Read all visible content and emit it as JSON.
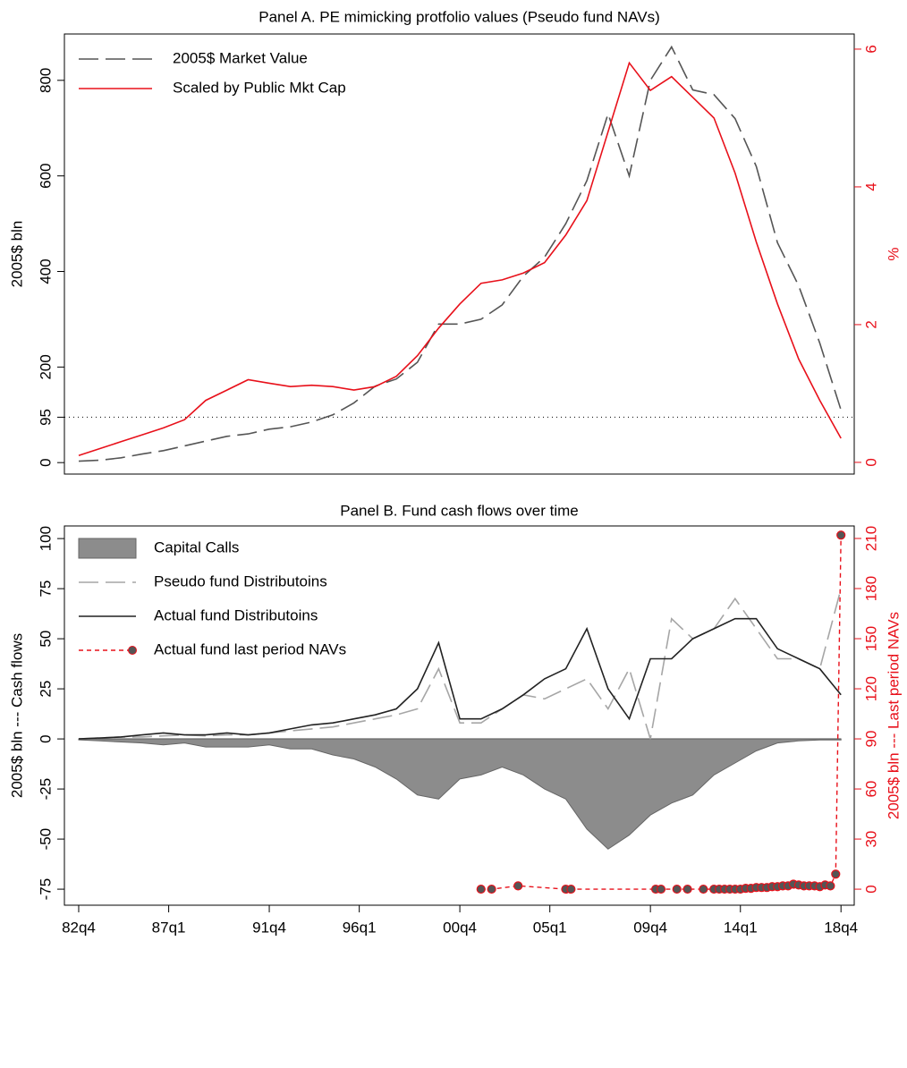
{
  "chart_data": [
    {
      "type": "line",
      "title": "Panel A.  PE mimicking protfolio values (Pseudo fund NAVs)",
      "ylabel": "2005$ bln",
      "y2label": "%",
      "x": [
        0,
        4,
        8,
        12,
        16,
        20,
        24,
        28,
        32,
        36,
        40,
        44,
        48,
        52,
        56,
        60,
        64,
        68,
        72,
        76,
        80,
        84,
        88,
        92,
        96,
        100,
        104,
        108,
        112,
        116,
        120,
        124,
        128,
        132,
        136,
        140,
        144
      ],
      "xlim": [
        -2.7,
        146.5
      ],
      "ylim": [
        -24,
        897
      ],
      "yticks": [
        0,
        95,
        200,
        400,
        600,
        800
      ],
      "y2lim": [
        -0.17,
        6.22
      ],
      "y2ticks": [
        0,
        2,
        4,
        6
      ],
      "hline": 95,
      "legend": "upper left",
      "series": [
        {
          "name": "2005$ Market Value",
          "color": "#555555",
          "linestyle": "dashed",
          "values": [
            3,
            5,
            10,
            18,
            25,
            35,
            45,
            55,
            60,
            70,
            75,
            85,
            100,
            125,
            160,
            175,
            210,
            290,
            290,
            300,
            330,
            390,
            430,
            500,
            590,
            730,
            600,
            800,
            870,
            780,
            770,
            720,
            620,
            460,
            370,
            250,
            110
          ]
        },
        {
          "name": "Scaled by Public Mkt Cap",
          "color": "#e8101a",
          "axis": "y2",
          "values": [
            0.1,
            0.2,
            0.3,
            0.4,
            0.5,
            0.62,
            0.9,
            1.05,
            1.2,
            1.15,
            1.1,
            1.12,
            1.1,
            1.05,
            1.1,
            1.25,
            1.55,
            1.95,
            2.3,
            2.6,
            2.65,
            2.75,
            2.9,
            3.3,
            3.8,
            4.8,
            5.8,
            5.4,
            5.6,
            5.3,
            5.0,
            4.2,
            3.2,
            2.3,
            1.5,
            0.9,
            0.35
          ]
        }
      ]
    },
    {
      "type": "combo",
      "title": "Panel B.  Fund cash flows over time",
      "ylabel": "2005$ bln   ---   Cash flows",
      "y2label": "2005$ bln  ---  Last period NAVs",
      "x": [
        0,
        4,
        8,
        12,
        16,
        20,
        24,
        28,
        32,
        36,
        40,
        44,
        48,
        52,
        56,
        60,
        64,
        68,
        72,
        76,
        80,
        84,
        88,
        92,
        96,
        100,
        104,
        108,
        112,
        116,
        120,
        124,
        128,
        132,
        136,
        140,
        144
      ],
      "xlim": [
        -2.7,
        146.5
      ],
      "xticks": [
        {
          "value": 0,
          "label": "82q4"
        },
        {
          "value": 17,
          "label": "87q1"
        },
        {
          "value": 36,
          "label": "91q4"
        },
        {
          "value": 53,
          "label": "96q1"
        },
        {
          "value": 72,
          "label": "00q4"
        },
        {
          "value": 89,
          "label": "05q1"
        },
        {
          "value": 108,
          "label": "09q4"
        },
        {
          "value": 125,
          "label": "14q1"
        },
        {
          "value": 144,
          "label": "18q4"
        }
      ],
      "ylim": [
        -83,
        106.3
      ],
      "yticks": [
        -75,
        -50,
        -25,
        0,
        25,
        50,
        75,
        100
      ],
      "y2lim": [
        -9.6,
        217.5
      ],
      "y2ticks": [
        0,
        30,
        60,
        90,
        120,
        150,
        180,
        210
      ],
      "legend": "upper left",
      "series": [
        {
          "name": "Capital Calls",
          "type": "area",
          "color": "#8c8c8c",
          "values": [
            -0.5,
            -1,
            -1.5,
            -2,
            -3,
            -2,
            -4,
            -4,
            -4,
            -3,
            -5,
            -5,
            -8,
            -10,
            -14,
            -20,
            -28,
            -30,
            -20,
            -18,
            -14,
            -18,
            -25,
            -30,
            -45,
            -55,
            -48,
            -38,
            -32,
            -28,
            -18,
            -12,
            -6,
            -2,
            -1,
            -0.5,
            -0.5
          ]
        },
        {
          "name": "Pseudo fund Distributoins",
          "type": "line",
          "color": "#a6a6a6",
          "linestyle": "dashed",
          "values": [
            0,
            0.5,
            1,
            1,
            1.5,
            2,
            1.5,
            2,
            2,
            3,
            4,
            5,
            6,
            8,
            10,
            12,
            15,
            35,
            8,
            8,
            15,
            22,
            20,
            25,
            30,
            15,
            35,
            0,
            60,
            50,
            55,
            70,
            55,
            40,
            40,
            35,
            75
          ]
        },
        {
          "name": "Actual fund Distributoins",
          "type": "line",
          "color": "#222222",
          "values": [
            0,
            0.5,
            1,
            2,
            3,
            2,
            2,
            3,
            2,
            3,
            5,
            7,
            8,
            10,
            12,
            15,
            25,
            48,
            10,
            10,
            15,
            22,
            30,
            35,
            55,
            25,
            10,
            40,
            40,
            50,
            55,
            60,
            60,
            45,
            40,
            35,
            22
          ]
        },
        {
          "name": "Actual fund last period NAVs",
          "type": "scatter",
          "color": "#e8101a",
          "linestyle": "dashed",
          "axis": "y2",
          "x": [
            76,
            78,
            83,
            92,
            93,
            109,
            110,
            113,
            115,
            118,
            120,
            121,
            122,
            123,
            124,
            125,
            126,
            127,
            128,
            129,
            130,
            131,
            132,
            133,
            134,
            135,
            136,
            137,
            138,
            139,
            140,
            141,
            142,
            143,
            144
          ],
          "values": [
            0,
            0,
            2,
            0,
            0,
            0,
            0,
            0,
            0,
            0,
            0,
            0,
            0,
            0,
            0,
            0,
            0.5,
            0.5,
            1,
            1,
            1,
            1.5,
            1.5,
            2,
            2,
            3,
            2.5,
            2,
            2,
            2,
            1.5,
            2.5,
            2,
            9,
            212
          ]
        }
      ]
    }
  ]
}
